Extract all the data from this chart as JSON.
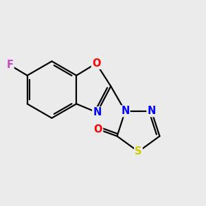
{
  "bg_color": "#ebebeb",
  "atom_colors": {
    "F": "#cc44cc",
    "O": "#ff0000",
    "N": "#0000ff",
    "S": "#cccc00"
  },
  "bond_width": 1.6,
  "font_size": 10.5
}
